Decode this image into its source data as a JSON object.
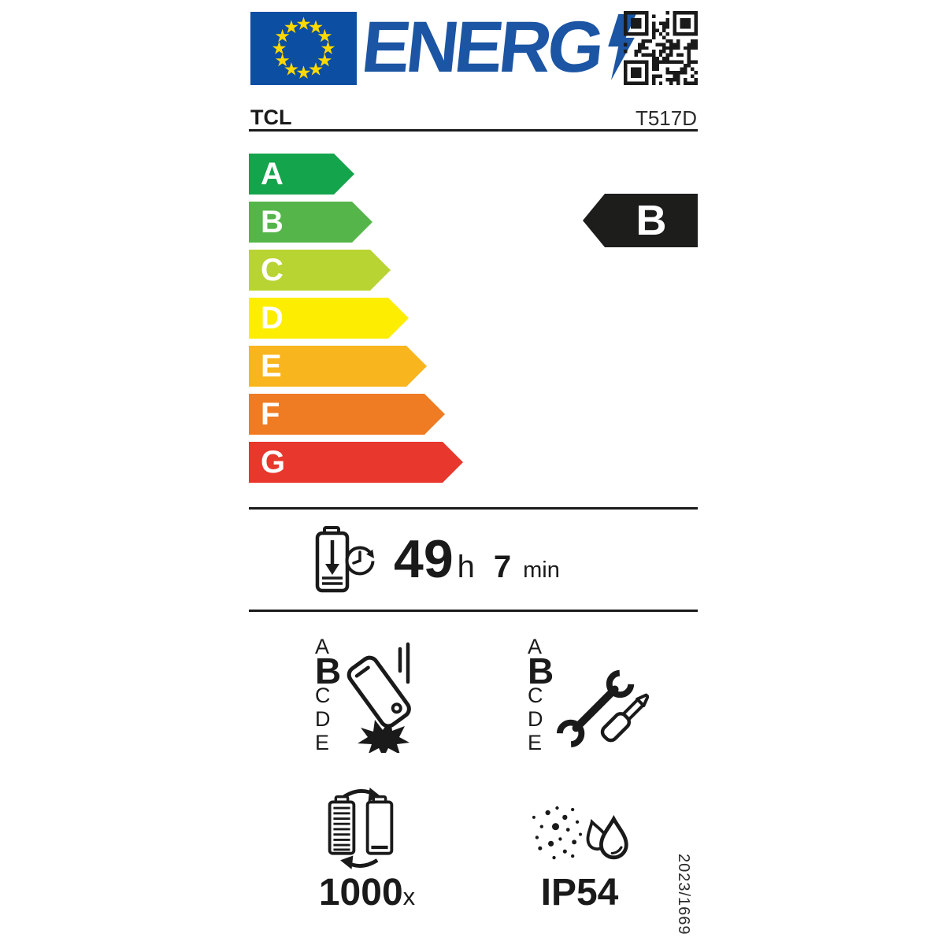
{
  "header": {
    "logo_text": "ENERG"
  },
  "brand": {
    "name": "TCL",
    "model": "T517D"
  },
  "colors": {
    "eu_blue": "#0b4ea2",
    "star_yellow": "#ffd800",
    "logo_blue": "#1b55a3",
    "ink": "#1a1a1a",
    "rating_bg": "#1d1d1b"
  },
  "energy_scale": {
    "classes": [
      {
        "letter": "A",
        "color": "#14a44c"
      },
      {
        "letter": "B",
        "color": "#55b54a"
      },
      {
        "letter": "C",
        "color": "#b8d432"
      },
      {
        "letter": "D",
        "color": "#fded00"
      },
      {
        "letter": "E",
        "color": "#f8b51d"
      },
      {
        "letter": "F",
        "color": "#ef7c23"
      },
      {
        "letter": "G",
        "color": "#e8372c"
      }
    ],
    "rating": "B"
  },
  "battery_endurance": {
    "hours": "49",
    "hours_unit": "h",
    "minutes": "7",
    "minutes_unit": "min"
  },
  "drop_resistance": {
    "scale": [
      "A",
      "B",
      "C",
      "D",
      "E"
    ],
    "rating": "B"
  },
  "repairability": {
    "scale": [
      "A",
      "B",
      "C",
      "D",
      "E"
    ],
    "rating": "B"
  },
  "battery_cycles": {
    "value": "1000",
    "unit": "x"
  },
  "ingress_protection": {
    "rating": "IP54"
  },
  "regulation_number": "2023/1669",
  "icons": {
    "flag": "eu-flag-icon",
    "qr": "qr-code",
    "bolt": "lightning-bolt-icon",
    "endurance": "battery-discharge-clock-icon",
    "drop": "falling-phone-icon",
    "repair": "wrench-screwdriver-icon",
    "cycles": "battery-cycle-icon",
    "ip": "dust-water-icon"
  }
}
